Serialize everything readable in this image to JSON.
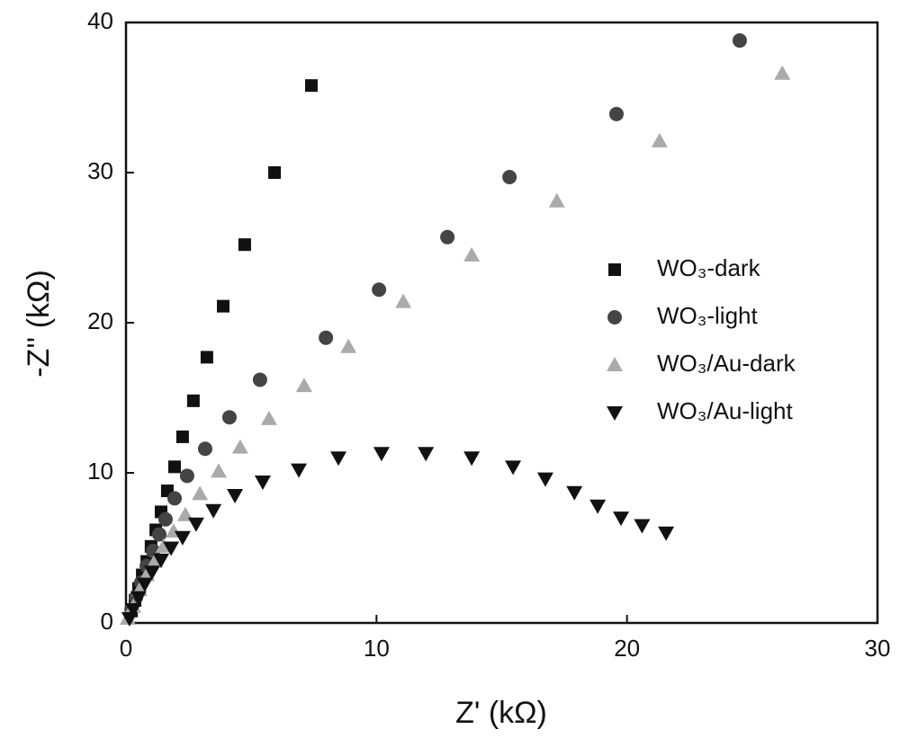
{
  "chart_data": {
    "type": "scatter",
    "xlabel": "Z' (kΩ)",
    "ylabel": "-Z'' (kΩ)",
    "xlim": [
      0,
      30
    ],
    "ylim": [
      0,
      40
    ],
    "xticks": [
      0,
      10,
      20,
      30
    ],
    "yticks": [
      0,
      10,
      20,
      30,
      40
    ],
    "series": [
      {
        "name": "WO₃-dark",
        "color": "#111111",
        "marker": "square",
        "x": [
          7.4,
          5.93,
          4.74,
          3.88,
          3.23,
          2.69,
          2.26,
          1.94,
          1.65,
          1.4,
          1.19,
          1.0,
          0.83,
          0.65,
          0.5,
          0.36,
          0.22
        ],
        "values": [
          35.8,
          30.0,
          25.2,
          21.1,
          17.7,
          14.8,
          12.4,
          10.4,
          8.8,
          7.4,
          6.2,
          5.1,
          4.1,
          3.2,
          2.3,
          1.5,
          0.8
        ]
      },
      {
        "name": "WO₃-light",
        "color": "#444444",
        "marker": "circle",
        "x": [
          24.5,
          19.58,
          15.31,
          12.83,
          10.1,
          7.98,
          5.35,
          4.13,
          3.16,
          2.44,
          1.94,
          1.58,
          1.33,
          1.08,
          0.83,
          0.61,
          0.4,
          0.22
        ],
        "values": [
          38.8,
          33.9,
          29.7,
          25.7,
          22.2,
          19.0,
          16.2,
          13.7,
          11.6,
          9.8,
          8.3,
          6.9,
          5.9,
          4.8,
          3.8,
          2.7,
          1.7,
          0.9
        ]
      },
      {
        "name": "WO₃/Au-dark",
        "color": "#aaaaaa",
        "marker": "triangle-up",
        "x": [
          26.2,
          21.3,
          17.2,
          13.8,
          11.07,
          8.88,
          7.11,
          5.71,
          4.56,
          3.7,
          2.95,
          2.37,
          1.9,
          1.5,
          1.15,
          0.83,
          0.54,
          0.29,
          0.07
        ],
        "values": [
          36.6,
          32.1,
          28.1,
          24.5,
          21.4,
          18.4,
          15.8,
          13.6,
          11.7,
          10.1,
          8.6,
          7.2,
          6.1,
          5.1,
          4.1,
          3.2,
          2.2,
          1.1,
          0.3
        ]
      },
      {
        "name": "WO₃/Au-light",
        "color": "#111111",
        "marker": "triangle-down",
        "x": [
          21.56,
          20.6,
          19.76,
          18.83,
          17.9,
          16.74,
          15.45,
          13.8,
          11.97,
          10.2,
          8.48,
          6.9,
          5.46,
          4.35,
          3.49,
          2.8,
          2.26,
          1.8,
          1.4,
          1.04,
          0.75,
          0.5,
          0.29,
          0.14
        ],
        "values": [
          6.0,
          6.5,
          7.0,
          7.8,
          8.7,
          9.6,
          10.4,
          11.0,
          11.3,
          11.3,
          11.0,
          10.2,
          9.4,
          8.5,
          7.5,
          6.6,
          5.7,
          5.0,
          4.2,
          3.4,
          2.6,
          1.7,
          0.9,
          0.3
        ]
      }
    ]
  }
}
